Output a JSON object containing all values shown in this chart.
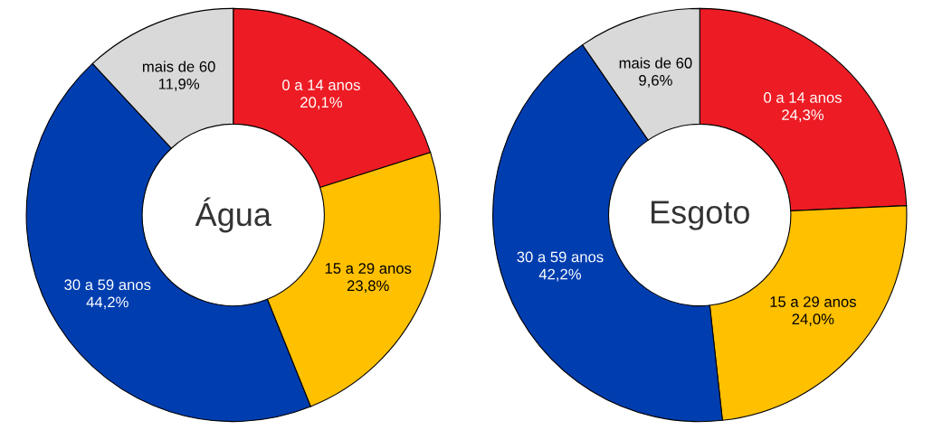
{
  "chart_data": [
    {
      "type": "donut",
      "title": "Água",
      "categories": [
        "0 a 14 anos",
        "15 a 29 anos",
        "30 a 59 anos",
        "mais de 60"
      ],
      "values": [
        20.1,
        23.8,
        44.2,
        11.9
      ],
      "colors": [
        "#ed1c24",
        "#ffc000",
        "#003eb0",
        "#d9d9d9"
      ],
      "value_labels": [
        "20,1%",
        "23,8%",
        "44,2%",
        "11,9%"
      ]
    },
    {
      "type": "donut",
      "title": "Esgoto",
      "categories": [
        "0 a 14 anos",
        "15 a 29 anos",
        "30 a 59 anos",
        "mais de 60"
      ],
      "values": [
        24.3,
        24.0,
        42.2,
        9.6
      ],
      "colors": [
        "#ed1c24",
        "#ffc000",
        "#003eb0",
        "#d9d9d9"
      ],
      "value_labels": [
        "24,3%",
        "24,0%",
        "42,2%",
        "9,6%"
      ]
    }
  ]
}
